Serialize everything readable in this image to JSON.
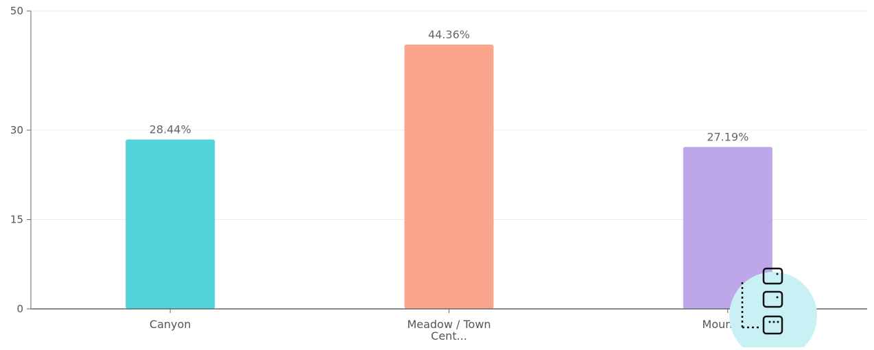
{
  "chart_data": {
    "type": "bar",
    "categories": [
      "Canyon",
      "Meadow / Town Cent...",
      "Mountain"
    ],
    "category_label_lines": [
      [
        "Canyon"
      ],
      [
        "Meadow / Town",
        "Cent..."
      ],
      [
        "Mountain"
      ]
    ],
    "values": [
      28.44,
      44.36,
      27.19
    ],
    "value_labels": [
      "28.44%",
      "44.36%",
      "27.19%"
    ],
    "bar_colors": [
      "#52d4da",
      "#fba58c",
      "#bea7e8"
    ],
    "y_ticks": [
      0,
      15,
      30,
      50
    ],
    "y_tick_labels": [
      "0",
      "15",
      "30",
      "50"
    ],
    "ylim": [
      0,
      50
    ],
    "grid": true,
    "legend": "none",
    "title": "",
    "xlabel": "",
    "ylabel": ""
  },
  "overlay": {
    "icon": "stacked-layers-icon",
    "circle_color": "#c9f0f4"
  }
}
